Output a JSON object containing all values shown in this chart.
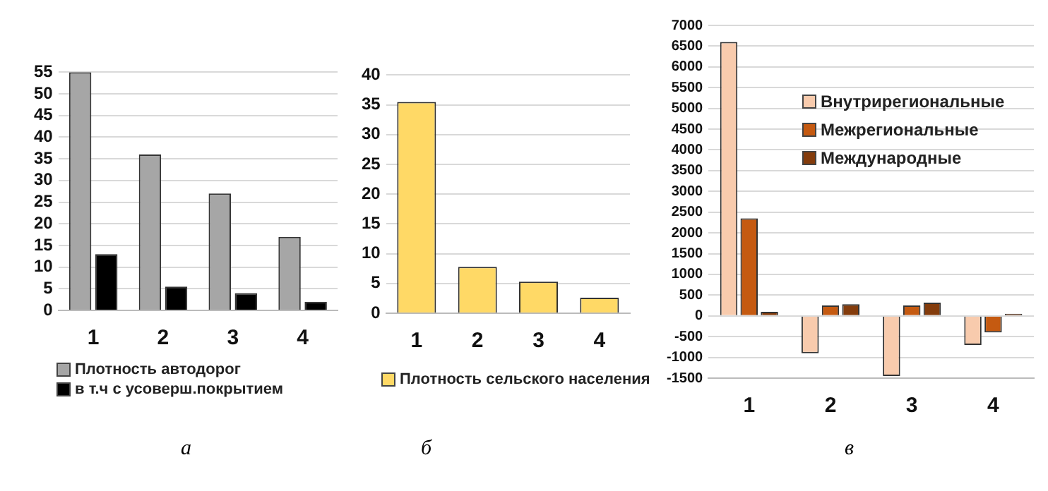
{
  "chart_data": [
    {
      "type": "bar",
      "categories": [
        "1",
        "2",
        "3",
        "4"
      ],
      "series": [
        {
          "name": "Плотность автодорог",
          "color": "#a6a6a6",
          "values": [
            55,
            36,
            27,
            17
          ]
        },
        {
          "name": "в т.ч с усоверш.покрытием",
          "color": "#000000",
          "values": [
            13,
            5.5,
            4,
            2
          ]
        }
      ],
      "ylim": [
        0,
        55
      ],
      "yticks": [
        0,
        5,
        10,
        15,
        20,
        25,
        30,
        35,
        40,
        45,
        50,
        55
      ],
      "grid": "y",
      "legend": "bottom",
      "annotations": [
        "а"
      ]
    },
    {
      "type": "bar",
      "categories": [
        "1",
        "2",
        "3",
        "4"
      ],
      "series": [
        {
          "name": "Плотность сельского населения",
          "color": "#ffd966",
          "values": [
            35.5,
            7.8,
            5.3,
            2.6
          ]
        }
      ],
      "ylim": [
        0,
        40
      ],
      "yticks": [
        0,
        5,
        10,
        15,
        20,
        25,
        30,
        35,
        40
      ],
      "grid": "y",
      "legend": "bottom",
      "annotations": [
        "б"
      ]
    },
    {
      "type": "bar",
      "categories": [
        "1",
        "2",
        "3",
        "4"
      ],
      "series": [
        {
          "name": "Внутрирегиональные",
          "color": "#f8cbad",
          "values": [
            6600,
            -900,
            -1450,
            -700
          ]
        },
        {
          "name": "Межрегиональные",
          "color": "#c55a11",
          "values": [
            2350,
            250,
            250,
            -400
          ]
        },
        {
          "name": "Международные",
          "color": "#843c0c",
          "values": [
            100,
            280,
            320,
            50
          ]
        }
      ],
      "ylim": [
        -1500,
        7000
      ],
      "yticks": [
        -1500,
        -1000,
        -500,
        0,
        500,
        1000,
        1500,
        2000,
        2500,
        3000,
        3500,
        4000,
        4500,
        5000,
        5500,
        6000,
        6500,
        7000
      ],
      "grid": "y",
      "legend": "top right",
      "annotations": [
        "в"
      ]
    }
  ]
}
